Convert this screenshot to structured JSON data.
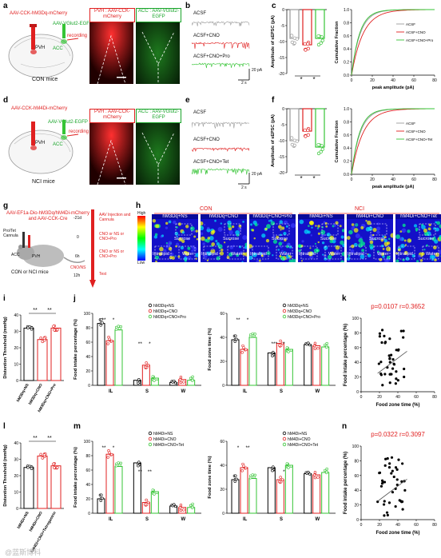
{
  "panels": {
    "a": "a",
    "b": "b",
    "c": "c",
    "d": "d",
    "e": "e",
    "f": "f",
    "g": "g",
    "h": "h",
    "i": "i",
    "j": "j",
    "k": "k",
    "l": "l",
    "m": "m",
    "n": "n"
  },
  "row_a": {
    "virus_pvh": "AAV-CCK-hM3Dq-mCherry",
    "virus_acc": "AAV-VGlut2-EGFP",
    "pvh": "PVH",
    "acc": "ACC",
    "recording": "recording",
    "mice": "CON mice",
    "img1": "PVH : AAV-CCK-mCherry",
    "img2": "ACC : AAV-VGlut2-EGFP"
  },
  "row_d": {
    "virus_pvh": "AAV-CCK-hM4Di-mCherry",
    "virus_acc": "AAV-VGlut2-EGFP",
    "pvh": "PVH",
    "acc": "ACC",
    "recording": "recording",
    "mice": "NCI mice",
    "img1": "PVH : AAV-CCK-mCherry",
    "img2": "ACC : AAV-VGlut2-EGFP"
  },
  "traces_b": {
    "t1": "ACSF",
    "t2": "ACSF+CNO",
    "t3": "ACSF+CNO+Pro",
    "scale_y": "20 pA",
    "scale_x": "2 s"
  },
  "traces_e": {
    "t1": "ACSF",
    "t2": "ACSF+CNO",
    "t3": "ACSF+CNO+Tet",
    "scale_y": "20 pA",
    "scale_x": "2 s"
  },
  "colors": {
    "gray": "#9a9a9a",
    "red": "#e02020",
    "green": "#35c435",
    "black": "#000000"
  },
  "chart_data": [
    {
      "panel": "c",
      "type": "bar",
      "ylabel": "Amplitude of sEPSC (pA)",
      "ylim": [
        -20,
        0
      ],
      "yticks": [
        "0",
        "-5",
        "-10",
        "-15",
        "-20"
      ],
      "categories": [
        "ACSF",
        "ACSF+CNO",
        "ACSF+CNO+Pro"
      ],
      "values": [
        -9,
        -11,
        -9
      ],
      "sig": [
        "*",
        "*"
      ]
    },
    {
      "panel": "c2",
      "type": "line",
      "xlabel": "peak amplitude (pA)",
      "ylabel": "Cumulative Fraction",
      "xlim": [
        0,
        80
      ],
      "ylim": [
        0,
        1.0
      ],
      "xticks": [
        "0",
        "20",
        "40",
        "60",
        "80"
      ],
      "yticks": [
        "0.0",
        "0.2",
        "0.4",
        "0.6",
        "0.8",
        "1.0"
      ],
      "series": [
        {
          "name": "ACSF",
          "color": "#9a9a9a"
        },
        {
          "name": "ACSF+CNO",
          "color": "#e02020"
        },
        {
          "name": "ACSF+CNO+Pro",
          "color": "#35c435"
        }
      ]
    },
    {
      "panel": "f",
      "type": "bar",
      "ylabel": "Amplitude of sEPSC (pA)",
      "ylim": [
        -20,
        0
      ],
      "yticks": [
        "0",
        "-5",
        "-10",
        "-15",
        "-20"
      ],
      "categories": [
        "ACSF",
        "ACSF+CNO",
        "ACSF+CNO+Tet"
      ],
      "values": [
        -10,
        -7,
        -12
      ],
      "sig": [
        "*",
        "*"
      ]
    },
    {
      "panel": "f2",
      "type": "line",
      "xlabel": "peak amplitude (pA)",
      "ylabel": "Cumulative Fraction",
      "xlim": [
        0,
        80
      ],
      "ylim": [
        0,
        1.0
      ],
      "xticks": [
        "0",
        "20",
        "40",
        "60",
        "80"
      ],
      "yticks": [
        "0.0",
        "0.2",
        "0.4",
        "0.6",
        "0.8",
        "1.0"
      ],
      "series": [
        {
          "name": "ACSF",
          "color": "#9a9a9a"
        },
        {
          "name": "ACSF+CNO",
          "color": "#e02020"
        },
        {
          "name": "ACSF+CNO+Tet",
          "color": "#35c435"
        }
      ]
    },
    {
      "panel": "i",
      "type": "bar",
      "ylabel": "Distention Threshold (mmHg)",
      "ylim": [
        0,
        40
      ],
      "yticks": [
        "0",
        "10",
        "20",
        "30",
        "40"
      ],
      "categories": [
        "hM3Dq+NS",
        "hM3Dq+CNO",
        "hM3Dq+CNO+Pro"
      ],
      "values": [
        32,
        25,
        32
      ],
      "sig": [
        "**",
        "**"
      ]
    },
    {
      "panel": "j1",
      "type": "bar",
      "ylabel": "Food intake percentage (%)",
      "ylim": [
        0,
        100
      ],
      "yticks": [
        "0",
        "20",
        "40",
        "60",
        "80",
        "100"
      ],
      "groups": [
        "IL",
        "S",
        "W"
      ],
      "series": [
        {
          "name": "hM3Dq+NS",
          "values": [
            86,
            7,
            4
          ]
        },
        {
          "name": "hM3Dq+CNO",
          "values": [
            62,
            28,
            8
          ]
        },
        {
          "name": "hM3Dq+CNO+Pro",
          "values": [
            77,
            10,
            7
          ]
        }
      ],
      "sig": [
        "**",
        "*",
        "**",
        "*"
      ]
    },
    {
      "panel": "j2",
      "type": "bar",
      "ylabel": "Food zone time (%)",
      "ylim": [
        0,
        60
      ],
      "yticks": [
        "0",
        "20",
        "40",
        "60"
      ],
      "groups": [
        "IL",
        "S",
        "W"
      ],
      "series": [
        {
          "name": "hM3Dq+NS",
          "values": [
            38,
            27,
            34
          ]
        },
        {
          "name": "hM3Dq+CNO",
          "values": [
            30,
            35,
            33
          ]
        },
        {
          "name": "hM3Dq+CNO+Pro",
          "values": [
            40,
            30,
            32
          ]
        }
      ],
      "sig": [
        "**",
        "*",
        "***",
        "*"
      ]
    },
    {
      "panel": "k",
      "type": "scatter",
      "xlabel": "Food zone time (%)",
      "ylabel": "Food intake percentage (%)",
      "xlim": [
        0,
        80
      ],
      "ylim": [
        0,
        100
      ],
      "xticks": [
        "0",
        "20",
        "40",
        "60",
        "80"
      ],
      "yticks": [
        "0",
        "20",
        "40",
        "60",
        "80",
        "100"
      ],
      "stat": "p=0.0107  r=0.3652"
    },
    {
      "panel": "l",
      "type": "bar",
      "ylabel": "Distention Threshold (mmHg)",
      "ylim": [
        0,
        40
      ],
      "yticks": [
        "0",
        "10",
        "20",
        "30",
        "40"
      ],
      "categories": [
        "hM4Di+NS",
        "hM4Di+CNO",
        "hM4Di+CNO+Tetrogastrin"
      ],
      "values": [
        25,
        32,
        26
      ],
      "sig": [
        "**",
        "**"
      ]
    },
    {
      "panel": "m1",
      "type": "bar",
      "ylabel": "Food intake percentage (%)",
      "ylim": [
        0,
        100
      ],
      "yticks": [
        "0",
        "20",
        "40",
        "60",
        "80",
        "100"
      ],
      "groups": [
        "IL",
        "S",
        "W"
      ],
      "series": [
        {
          "name": "hM4Di+NS",
          "values": [
            20,
            70,
            10
          ]
        },
        {
          "name": "hM4Di+CNO",
          "values": [
            82,
            15,
            8
          ]
        },
        {
          "name": "hM4Di+CNO+Tet",
          "values": [
            65,
            30,
            8
          ]
        }
      ],
      "sig": [
        "**",
        "*",
        "**",
        "**"
      ]
    },
    {
      "panel": "m2",
      "type": "bar",
      "ylabel": "Food zone time (%)",
      "ylim": [
        0,
        60
      ],
      "yticks": [
        "0",
        "20",
        "40",
        "60"
      ],
      "groups": [
        "IL",
        "S",
        "W"
      ],
      "series": [
        {
          "name": "hM4Di+NS",
          "values": [
            28,
            38,
            33
          ]
        },
        {
          "name": "hM4Di+CNO",
          "values": [
            38,
            28,
            32
          ]
        },
        {
          "name": "hM4Di+CNO+Tet",
          "values": [
            29,
            40,
            34
          ]
        }
      ],
      "sig": [
        "*",
        "**",
        "*",
        "*"
      ]
    },
    {
      "panel": "n",
      "type": "scatter",
      "xlabel": "Food zone time (%)",
      "ylabel": "Food intake percentage (%)",
      "xlim": [
        0,
        80
      ],
      "ylim": [
        0,
        100
      ],
      "xticks": [
        "0",
        "20",
        "40",
        "60",
        "80"
      ],
      "yticks": [
        "0",
        "20",
        "40",
        "60",
        "80",
        "100"
      ],
      "stat": "p=0.0322  r=0.3097"
    }
  ],
  "protocol_g": {
    "virus": "AAV-EF1a-Dio-hM3Dq/hM4Di-mCherry and AAV-CCK-Cre",
    "cannula": "Pro/Tet\nCannula",
    "acc": "ACC",
    "pvh": "PVH",
    "mice": "CON or NCI mice",
    "times": [
      "-21d",
      "0",
      "6h",
      "12h"
    ],
    "events": [
      "AAV Injection and Cannula",
      "CNO or NS or CNO+Pro",
      "CNO or NS or CNO+Pro",
      "Test"
    ],
    "cnons": "CNO/NS"
  },
  "heatmaps_h": {
    "con": "CON",
    "nci": "NCI",
    "titles": [
      "hM3Dq+NS",
      "hM3Dq+CNO",
      "hM3Dq+CNO+Pro",
      "hM4Di+NS",
      "hM4Di+CNO",
      "hM4Di+CNO+Tet"
    ],
    "sucrose": "Sucrose",
    "intralipid": "Intralipid",
    "water": "Water",
    "high": "High",
    "low": "Low"
  },
  "watermark": "@蓝斯博科"
}
